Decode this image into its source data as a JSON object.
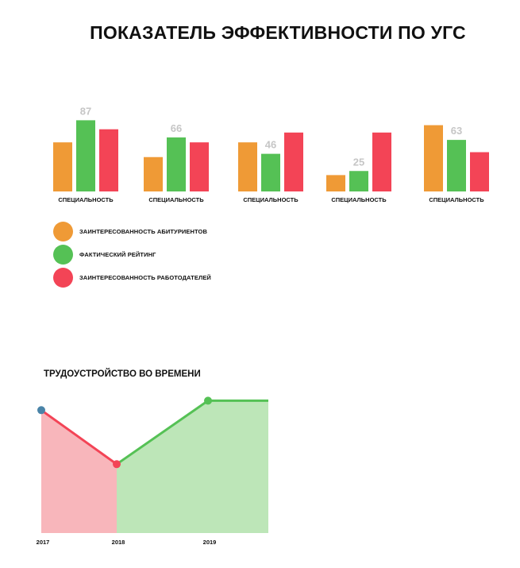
{
  "title": "ПОКАЗАТЕЛЬ ЭФФЕКТИВНОСТИ ПО УГС",
  "chart_data": [
    {
      "type": "bar",
      "categories": [
        "СПЕЦИАЛЬНОСТЬ",
        "СПЕЦИАЛЬНОСТЬ",
        "СПЕЦИАЛЬНОСТЬ",
        "СПЕЦИАЛЬНОСТЬ",
        "СПЕЦИАЛЬНОСТЬ"
      ],
      "series": [
        {
          "name": "ЗАИНТЕРЕСОВАННОСТЬ АБИТУРИЕНТОВ",
          "color": "#ef9a36",
          "values": [
            60,
            42,
            60,
            20,
            81
          ]
        },
        {
          "name": "ФАКТИЧЕСКИЙ РЕЙТИНГ",
          "color": "#55c155",
          "values": [
            87,
            66,
            46,
            25,
            63
          ]
        },
        {
          "name": "ЗАИНТЕРЕСОВАННОСТЬ РАБОТОДАТЕЛЕЙ",
          "color": "#f34456",
          "values": [
            76,
            60,
            72,
            72,
            48
          ]
        }
      ],
      "data_labels": [
        "87",
        "66",
        "46",
        "25",
        "63"
      ],
      "legend": "bottom-left",
      "grid": false
    },
    {
      "type": "area",
      "title": "ТРУДОУСТРОЙСТВО ВО  ВРЕМЕНИ",
      "x": [
        "2017",
        "2018",
        "2019"
      ],
      "ylim": [
        0,
        100
      ],
      "segments": [
        {
          "color": "#f34456",
          "fill": "#f8b6bb",
          "points": [
            [
              "2017",
              91
            ],
            [
              "2018",
              51
            ]
          ]
        },
        {
          "color": "#55c155",
          "fill": "#bde6b8",
          "points": [
            [
              "2018",
              51
            ],
            [
              "2019",
              98
            ]
          ]
        }
      ],
      "markers": [
        {
          "x": "2017",
          "y": 91,
          "color": "#4a84a8"
        },
        {
          "x": "2018",
          "y": 51,
          "color": "#f34456"
        },
        {
          "x": "2019",
          "y": 98,
          "color": "#55c155"
        }
      ],
      "grid": false
    }
  ]
}
